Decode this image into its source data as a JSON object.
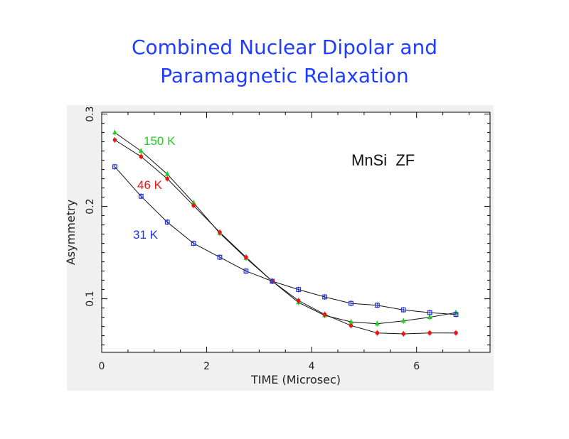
{
  "title_lines": [
    "Combined Nuclear Dipolar and",
    "Paramagnetic Relaxation"
  ],
  "chart_data": {
    "type": "line",
    "title": "Combined Nuclear Dipolar and Paramagnetic Relaxation",
    "xlabel": "TIME (Microsec)",
    "ylabel": "Asymmetry",
    "xlim": [
      0,
      7.4
    ],
    "ylim": [
      0.042,
      0.302
    ],
    "xticks": [
      0,
      2,
      4,
      6
    ],
    "xtick_labels": [
      "0",
      "2",
      "4",
      "6"
    ],
    "yticks": [
      0.1,
      0.2,
      0.3
    ],
    "ytick_labels": [
      "0.1",
      "0.2",
      "0.3"
    ],
    "x": [
      0.25,
      0.75,
      1.25,
      1.75,
      2.25,
      2.75,
      3.25,
      3.75,
      4.25,
      4.75,
      5.25,
      5.75,
      6.25,
      6.75
    ],
    "series": [
      {
        "name": "150 K",
        "color": "#22cc22",
        "marker": "triangle",
        "values": [
          0.28,
          0.26,
          0.235,
          0.204,
          0.171,
          0.144,
          0.119,
          0.096,
          0.082,
          0.075,
          0.073,
          0.076,
          0.08,
          0.085
        ]
      },
      {
        "name": "46 K",
        "color": "#ee1111",
        "marker": "circle",
        "values": [
          0.272,
          0.254,
          0.23,
          0.201,
          0.172,
          0.145,
          0.119,
          0.098,
          0.083,
          0.071,
          0.063,
          0.062,
          0.063,
          0.063
        ]
      },
      {
        "name": "31 K",
        "color": "#2233dd",
        "marker": "square",
        "values": [
          0.243,
          0.211,
          0.183,
          0.16,
          0.145,
          0.13,
          0.119,
          0.11,
          0.102,
          0.095,
          0.093,
          0.088,
          0.085,
          0.083
        ]
      }
    ],
    "annotations": [
      {
        "text": "150 K",
        "color": "#22cc22"
      },
      {
        "text": "46 K",
        "color": "#ee1111"
      },
      {
        "text": "31 K",
        "color": "#2233dd"
      },
      {
        "text": "MnSi  ZF",
        "color": "#111111"
      }
    ]
  }
}
